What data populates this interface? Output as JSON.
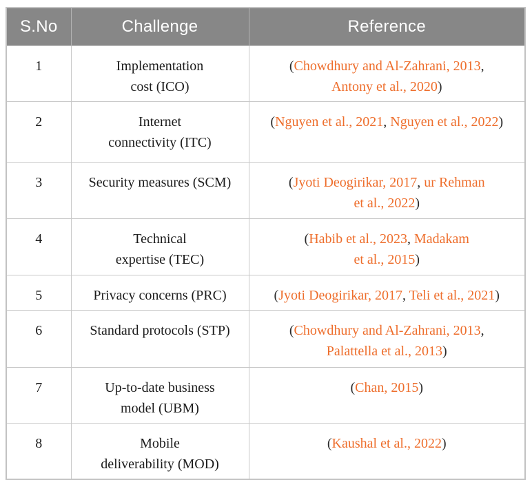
{
  "colors": {
    "header_background": "#878787",
    "header_text": "#ffffff",
    "citation_link": "#ee6e2c",
    "body_text": "#1b1b1b",
    "grid_border": "#c8c8c8"
  },
  "table": {
    "headers": [
      {
        "id": "sno",
        "label": "S.No"
      },
      {
        "id": "challenge",
        "label": "Challenge"
      },
      {
        "id": "reference",
        "label": "Reference"
      }
    ],
    "rows": [
      {
        "sno": "1",
        "challenge": "Implementation\ncost (ICO)",
        "reference": [
          {
            "text": "(",
            "link": false
          },
          {
            "text": "Chowdhury and Al-Zahrani, 2013",
            "link": true
          },
          {
            "text": ",\n",
            "link": false
          },
          {
            "text": "Antony et al., 2020",
            "link": true
          },
          {
            "text": ")",
            "link": false
          }
        ]
      },
      {
        "sno": "2",
        "challenge": "Internet\nconnectivity (ITC)",
        "reference": [
          {
            "text": "(",
            "link": false
          },
          {
            "text": "Nguyen et al., 2021",
            "link": true
          },
          {
            "text": ", ",
            "link": false
          },
          {
            "text": "Nguyen et al., 2022",
            "link": true
          },
          {
            "text": ")",
            "link": false
          }
        ]
      },
      {
        "sno": "3",
        "challenge": "Security measures (SCM)",
        "reference": [
          {
            "text": "(",
            "link": false
          },
          {
            "text": "Jyoti Deogirikar, 2017",
            "link": true
          },
          {
            "text": ", ",
            "link": false
          },
          {
            "text": "ur Rehman\net al., 2022",
            "link": true
          },
          {
            "text": ")",
            "link": false
          }
        ]
      },
      {
        "sno": "4",
        "challenge": "Technical\nexpertise (TEC)",
        "reference": [
          {
            "text": "(",
            "link": false
          },
          {
            "text": "Habib et al., 2023",
            "link": true
          },
          {
            "text": ", ",
            "link": false
          },
          {
            "text": "Madakam\net al., 2015",
            "link": true
          },
          {
            "text": ")",
            "link": false
          }
        ]
      },
      {
        "sno": "5",
        "challenge": "Privacy concerns (PRC)",
        "reference": [
          {
            "text": "(",
            "link": false
          },
          {
            "text": "Jyoti Deogirikar, 2017",
            "link": true
          },
          {
            "text": ", ",
            "link": false
          },
          {
            "text": "Teli et al., 2021",
            "link": true
          },
          {
            "text": ")",
            "link": false
          }
        ]
      },
      {
        "sno": "6",
        "challenge": "Standard protocols (STP)",
        "reference": [
          {
            "text": "(",
            "link": false
          },
          {
            "text": "Chowdhury and Al-Zahrani, 2013",
            "link": true
          },
          {
            "text": ",\n",
            "link": false
          },
          {
            "text": "Palattella et al., 2013",
            "link": true
          },
          {
            "text": ")",
            "link": false
          }
        ]
      },
      {
        "sno": "7",
        "challenge": "Up-to-date business\nmodel (UBM)",
        "reference": [
          {
            "text": "(",
            "link": false
          },
          {
            "text": "Chan, 2015",
            "link": true
          },
          {
            "text": ")",
            "link": false
          }
        ]
      },
      {
        "sno": "8",
        "challenge": "Mobile\ndeliverability (MOD)",
        "reference": [
          {
            "text": "(",
            "link": false
          },
          {
            "text": "Kaushal et al., 2022",
            "link": true
          },
          {
            "text": ")",
            "link": false
          }
        ]
      }
    ]
  }
}
